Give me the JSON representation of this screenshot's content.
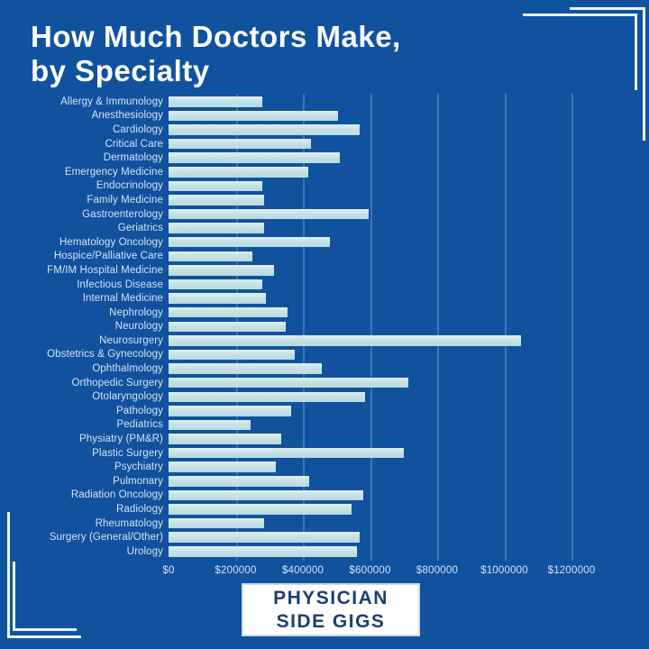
{
  "title": {
    "line1": "How Much Doctors Make,",
    "line2": "by Specialty"
  },
  "chart_data": {
    "type": "bar",
    "orientation": "horizontal",
    "title": "How Much Doctors Make, by Specialty",
    "xlabel": "",
    "ylabel": "",
    "grid": "vertical",
    "xlim": [
      0,
      1283000
    ],
    "categories": [
      "Allergy & Immunology",
      "Anesthesiology",
      "Cardiology",
      "Critical Care",
      "Dermatology",
      "Emergency Medicine",
      "Endocrinology",
      "Family Medicine",
      "Gastroenterology",
      "Geriatrics",
      "Hematology Oncology",
      "Hospice/Palliative Care",
      "FM/IM Hospital Medicine",
      "Infectious Disease",
      "Internal Medicine",
      "Nephrology",
      "Neurology",
      "Neurosurgery",
      "Obstetrics & Gynecology",
      "Ophthalmology",
      "Orthopedic Surgery",
      "Otolaryngology",
      "Pathology",
      "Pediatrics",
      "Physiatry (PM&R)",
      "Plastic Surgery",
      "Psychiatry",
      "Pulmonary",
      "Radiation Oncology",
      "Radiology",
      "Rheumatology",
      "Surgery (General/Other)",
      "Urology"
    ],
    "values": [
      280000,
      505000,
      570000,
      425000,
      510000,
      415000,
      280000,
      285000,
      595000,
      285000,
      480000,
      250000,
      315000,
      280000,
      290000,
      355000,
      350000,
      1050000,
      375000,
      455000,
      715000,
      585000,
      365000,
      245000,
      335000,
      700000,
      320000,
      420000,
      580000,
      545000,
      285000,
      570000,
      560000
    ],
    "x_ticks": {
      "labels": [
        "$0",
        "$200000",
        "$400000",
        "$600000",
        "$800000",
        "$1000000",
        "$1200000"
      ],
      "values": [
        0,
        200000,
        400000,
        600000,
        800000,
        1000000,
        1200000
      ]
    }
  },
  "badge": {
    "line1": "PHYSICIAN",
    "line2": "SIDE GIGS"
  },
  "colors": {
    "background": "#11529e",
    "bar": "#c6e2e6",
    "title_text": "#ffffff",
    "label_text": "#d5e3f1",
    "gridline": "#7daad7",
    "bracket": "#edf5fc",
    "badge_background": "#ffffff",
    "badge_text": "#1d3f6f"
  }
}
